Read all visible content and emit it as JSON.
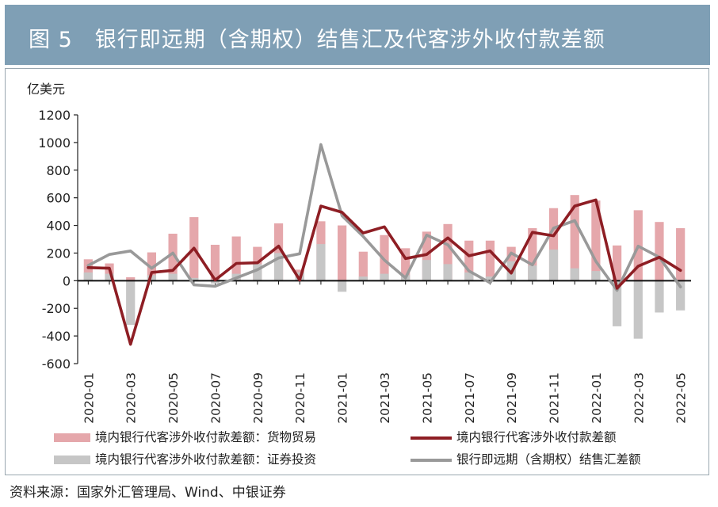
{
  "header": {
    "title": "图 5　银行即远期（含期权）结售汇及代客涉外收付款差额"
  },
  "source": "资料来源：国家外汇管理局、Wind、中银证券",
  "chart_data": {
    "type": "bar+line",
    "title": "图 5　银行即远期（含期权）结售汇及代客涉外收付款差额",
    "unit_label": "亿美元",
    "ylim": [
      -600,
      1200
    ],
    "yticks": [
      -600,
      -400,
      -200,
      0,
      200,
      400,
      600,
      800,
      1000,
      1200
    ],
    "categories": [
      "2020-01",
      "2020-02",
      "2020-03",
      "2020-04",
      "2020-05",
      "2020-06",
      "2020-07",
      "2020-08",
      "2020-09",
      "2020-10",
      "2020-11",
      "2020-12",
      "2021-01",
      "2021-02",
      "2021-03",
      "2021-04",
      "2021-05",
      "2021-06",
      "2021-07",
      "2021-08",
      "2021-09",
      "2021-10",
      "2021-11",
      "2021-12",
      "2022-01",
      "2022-02",
      "2022-03",
      "2022-04",
      "2022-05"
    ],
    "xtick_labels": [
      "2020-01",
      "2020-03",
      "2020-05",
      "2020-07",
      "2020-09",
      "2020-11",
      "2021-01",
      "2021-03",
      "2021-05",
      "2021-07",
      "2021-09",
      "2021-11",
      "2022-01",
      "2022-03",
      "2022-05"
    ],
    "legend": {
      "goods": "境内银行代客涉外收付款差额：货物贸易",
      "total": "境内银行代客涉外收付款差额",
      "securities": "境内银行代客涉外收付款差额：证券投资",
      "fx": "银行即远期（含期权）结售汇差额"
    },
    "colors": {
      "goods": "#e5a7ab",
      "securities": "#c6c6c6",
      "total": "#8e1e24",
      "fx": "#999999"
    },
    "series": [
      {
        "key": "goods",
        "name": "境内银行代客涉外收付款差额：货物贸易",
        "kind": "bar",
        "values": [
          155,
          125,
          25,
          205,
          340,
          460,
          260,
          320,
          245,
          415,
          80,
          430,
          400,
          210,
          330,
          235,
          355,
          410,
          290,
          290,
          245,
          380,
          525,
          620,
          580,
          255,
          510,
          425,
          380
        ]
      },
      {
        "key": "securities",
        "name": "境内银行代客涉外收付款差额：证券投资",
        "kind": "bar",
        "values": [
          60,
          50,
          -320,
          40,
          50,
          20,
          -20,
          50,
          120,
          200,
          60,
          265,
          -80,
          30,
          50,
          40,
          150,
          120,
          60,
          30,
          140,
          110,
          225,
          90,
          70,
          -330,
          -420,
          -230,
          -215
        ]
      },
      {
        "key": "total",
        "name": "境内银行代客涉外收付款差额",
        "kind": "line",
        "values": [
          95,
          90,
          -460,
          60,
          75,
          235,
          5,
          125,
          130,
          250,
          5,
          540,
          495,
          345,
          390,
          160,
          190,
          310,
          180,
          215,
          55,
          350,
          325,
          540,
          585,
          -55,
          105,
          170,
          75
        ]
      },
      {
        "key": "fx",
        "name": "银行即远期（含期权）结售汇差额",
        "kind": "line",
        "values": [
          110,
          190,
          215,
          90,
          200,
          -30,
          -40,
          20,
          80,
          165,
          195,
          985,
          470,
          320,
          150,
          20,
          330,
          260,
          70,
          -15,
          200,
          115,
          380,
          435,
          140,
          -70,
          250,
          170,
          -45
        ]
      }
    ]
  }
}
